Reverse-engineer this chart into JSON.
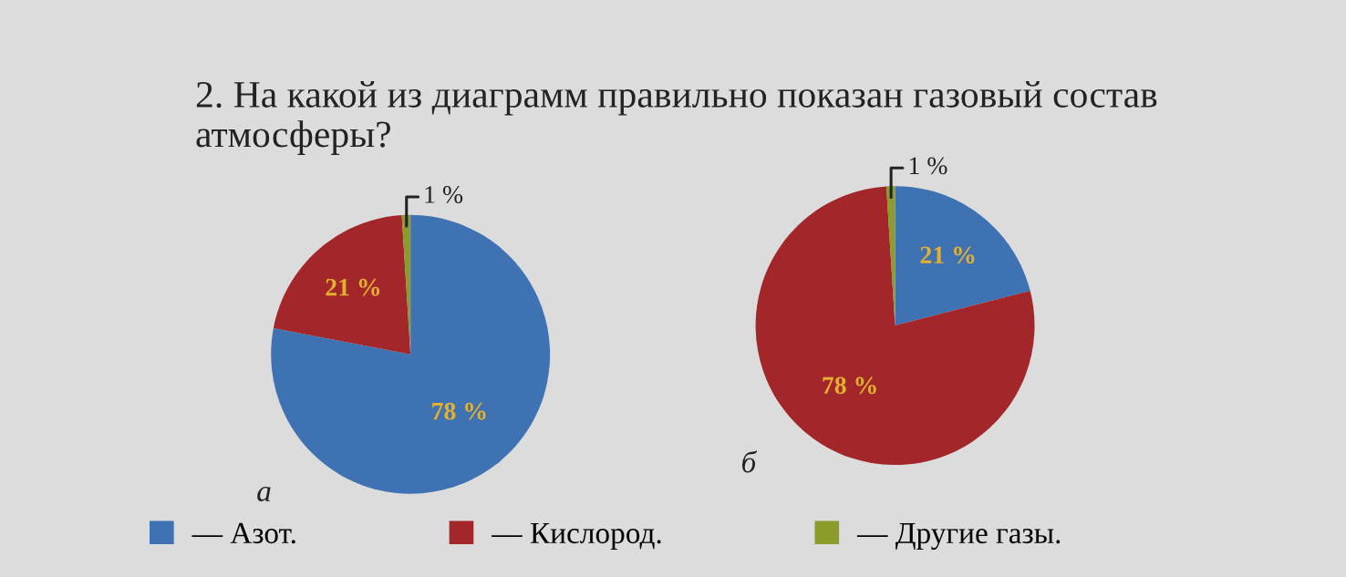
{
  "chart_data": [
    {
      "type": "pie",
      "title": "2. На какой из диаграмм правильно показан газовый состав атмосферы?",
      "categories": [
        "— Азот.",
        "— Кислород.",
        "— Другие газы."
      ],
      "values": [
        78,
        21,
        1
      ],
      "colors": [
        "#3f72b3",
        "#a3262b",
        "#8c9b2c"
      ],
      "value_labels": [
        "78 %",
        "21 %",
        "1 %"
      ],
      "legend": "bottom",
      "annotations": [
        "а"
      ]
    },
    {
      "type": "pie",
      "categories": [
        null,
        null,
        null
      ],
      "values": [
        21,
        78,
        1
      ],
      "colors": [
        "#3f72b3",
        "#a3262b",
        "#8c9b2c"
      ],
      "value_labels": [
        "21 %",
        "78 %",
        "1 %"
      ],
      "annotations": [
        "б"
      ]
    }
  ]
}
